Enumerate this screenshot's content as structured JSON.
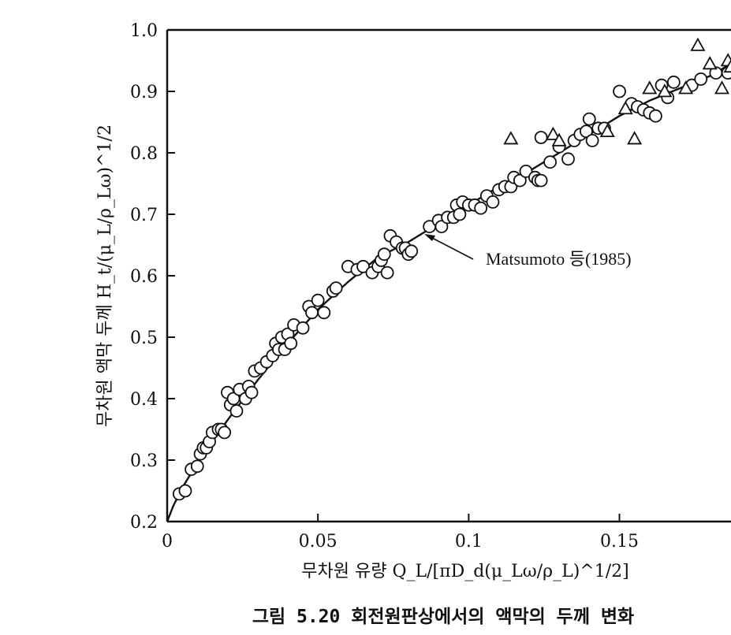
{
  "caption": "그림 5.20  회전원판상에서의 액막의 두께 변화",
  "chart_data": {
    "type": "scatter",
    "title": "",
    "xlabel": "무차원 유량  Q_L/[πD_d(μ_Lω/ρ_L)^1/2]",
    "ylabel": "무차원 액막 두께  H_t/(μ_L/ρ_Lω)^1/2",
    "xlim": [
      0,
      0.187
    ],
    "ylim": [
      0.2,
      1.0
    ],
    "x_ticks": [
      "0",
      "0.05",
      "0.1",
      "0.15"
    ],
    "y_ticks": [
      "0.2",
      "0.3",
      "0.4",
      "0.5",
      "0.6",
      "0.7",
      "0.8",
      "0.9",
      "1.0"
    ],
    "grid": false,
    "annotation": "Matsumoto 등(1985)",
    "series": [
      {
        "marker": "circle",
        "points": [
          [
            0.004,
            0.245
          ],
          [
            0.006,
            0.25
          ],
          [
            0.008,
            0.285
          ],
          [
            0.01,
            0.29
          ],
          [
            0.011,
            0.31
          ],
          [
            0.012,
            0.32
          ],
          [
            0.013,
            0.32
          ],
          [
            0.014,
            0.33
          ],
          [
            0.015,
            0.345
          ],
          [
            0.017,
            0.35
          ],
          [
            0.018,
            0.35
          ],
          [
            0.019,
            0.345
          ],
          [
            0.02,
            0.41
          ],
          [
            0.021,
            0.39
          ],
          [
            0.022,
            0.4
          ],
          [
            0.023,
            0.38
          ],
          [
            0.024,
            0.415
          ],
          [
            0.026,
            0.4
          ],
          [
            0.027,
            0.42
          ],
          [
            0.028,
            0.41
          ],
          [
            0.029,
            0.445
          ],
          [
            0.031,
            0.45
          ],
          [
            0.033,
            0.46
          ],
          [
            0.035,
            0.47
          ],
          [
            0.036,
            0.49
          ],
          [
            0.037,
            0.48
          ],
          [
            0.038,
            0.5
          ],
          [
            0.039,
            0.48
          ],
          [
            0.04,
            0.505
          ],
          [
            0.041,
            0.49
          ],
          [
            0.042,
            0.52
          ],
          [
            0.045,
            0.515
          ],
          [
            0.047,
            0.55
          ],
          [
            0.048,
            0.54
          ],
          [
            0.05,
            0.56
          ],
          [
            0.052,
            0.54
          ],
          [
            0.055,
            0.575
          ],
          [
            0.056,
            0.58
          ],
          [
            0.06,
            0.615
          ],
          [
            0.063,
            0.61
          ],
          [
            0.065,
            0.615
          ],
          [
            0.068,
            0.605
          ],
          [
            0.07,
            0.615
          ],
          [
            0.071,
            0.625
          ],
          [
            0.072,
            0.635
          ],
          [
            0.073,
            0.605
          ],
          [
            0.074,
            0.665
          ],
          [
            0.076,
            0.655
          ],
          [
            0.078,
            0.645
          ],
          [
            0.079,
            0.645
          ],
          [
            0.08,
            0.635
          ],
          [
            0.081,
            0.64
          ],
          [
            0.087,
            0.68
          ],
          [
            0.09,
            0.69
          ],
          [
            0.091,
            0.68
          ],
          [
            0.093,
            0.695
          ],
          [
            0.095,
            0.695
          ],
          [
            0.096,
            0.715
          ],
          [
            0.097,
            0.7
          ],
          [
            0.098,
            0.72
          ],
          [
            0.1,
            0.715
          ],
          [
            0.102,
            0.715
          ],
          [
            0.104,
            0.71
          ],
          [
            0.106,
            0.73
          ],
          [
            0.108,
            0.72
          ],
          [
            0.11,
            0.74
          ],
          [
            0.112,
            0.745
          ],
          [
            0.114,
            0.745
          ],
          [
            0.115,
            0.76
          ],
          [
            0.117,
            0.755
          ],
          [
            0.119,
            0.77
          ],
          [
            0.122,
            0.76
          ],
          [
            0.123,
            0.755
          ],
          [
            0.124,
            0.755
          ],
          [
            0.127,
            0.785
          ],
          [
            0.13,
            0.81
          ],
          [
            0.133,
            0.79
          ],
          [
            0.135,
            0.82
          ],
          [
            0.137,
            0.83
          ],
          [
            0.139,
            0.835
          ],
          [
            0.14,
            0.855
          ],
          [
            0.141,
            0.82
          ],
          [
            0.143,
            0.84
          ],
          [
            0.145,
            0.84
          ],
          [
            0.15,
            0.9
          ],
          [
            0.154,
            0.88
          ],
          [
            0.156,
            0.875
          ],
          [
            0.158,
            0.87
          ],
          [
            0.16,
            0.865
          ],
          [
            0.162,
            0.86
          ],
          [
            0.164,
            0.91
          ],
          [
            0.166,
            0.89
          ],
          [
            0.168,
            0.915
          ],
          [
            0.174,
            0.91
          ],
          [
            0.177,
            0.92
          ],
          [
            0.182,
            0.93
          ],
          [
            0.186,
            0.93
          ],
          [
            0.124,
            0.825
          ]
        ]
      },
      {
        "marker": "triangle",
        "points": [
          [
            0.114,
            0.823
          ],
          [
            0.128,
            0.83
          ],
          [
            0.13,
            0.82
          ],
          [
            0.146,
            0.835
          ],
          [
            0.152,
            0.872
          ],
          [
            0.155,
            0.823
          ],
          [
            0.16,
            0.905
          ],
          [
            0.165,
            0.9
          ],
          [
            0.172,
            0.905
          ],
          [
            0.176,
            0.975
          ],
          [
            0.18,
            0.945
          ],
          [
            0.184,
            0.905
          ],
          [
            0.186,
            0.95
          ],
          [
            0.187,
            0.94
          ]
        ]
      }
    ],
    "fit_curve": {
      "points": [
        [
          0.0,
          0.2
        ],
        [
          0.002,
          0.225
        ],
        [
          0.005,
          0.255
        ],
        [
          0.01,
          0.295
        ],
        [
          0.015,
          0.33
        ],
        [
          0.02,
          0.365
        ],
        [
          0.03,
          0.43
        ],
        [
          0.04,
          0.49
        ],
        [
          0.05,
          0.545
        ],
        [
          0.06,
          0.59
        ],
        [
          0.07,
          0.63
        ],
        [
          0.08,
          0.655
        ],
        [
          0.09,
          0.685
        ],
        [
          0.1,
          0.715
        ],
        [
          0.11,
          0.745
        ],
        [
          0.12,
          0.77
        ],
        [
          0.13,
          0.8
        ],
        [
          0.14,
          0.83
        ],
        [
          0.15,
          0.86
        ],
        [
          0.16,
          0.885
        ],
        [
          0.17,
          0.905
        ],
        [
          0.18,
          0.925
        ],
        [
          0.187,
          0.945
        ]
      ]
    }
  }
}
